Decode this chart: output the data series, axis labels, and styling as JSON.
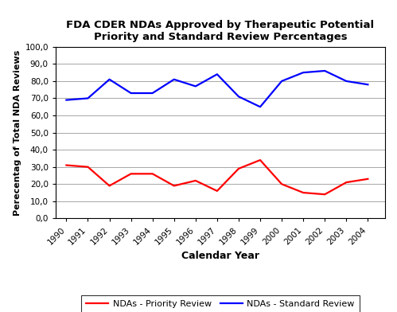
{
  "title_line1": "FDA CDER NDAs Approved by Therapeutic Potential",
  "title_line2": "Priority and Standard Review Percentages",
  "xlabel": "Calendar Year",
  "ylabel": "Perecentag of Total NDA Reviews",
  "years": [
    1990,
    1991,
    1992,
    1993,
    1994,
    1995,
    1996,
    1997,
    1998,
    1999,
    2000,
    2001,
    2002,
    2003,
    2004
  ],
  "priority": [
    31.0,
    30.0,
    19.0,
    26.0,
    26.0,
    19.0,
    22.0,
    16.0,
    29.0,
    34.0,
    20.0,
    15.0,
    14.0,
    21.0,
    23.0
  ],
  "standard": [
    69.0,
    70.0,
    81.0,
    73.0,
    73.0,
    81.0,
    77.0,
    84.0,
    71.0,
    65.0,
    80.0,
    85.0,
    86.0,
    80.0,
    78.0
  ],
  "priority_color": "#FF0000",
  "standard_color": "#0000FF",
  "priority_label": "NDAs - Priority Review",
  "standard_label": "NDAs - Standard Review",
  "ylim": [
    0,
    100
  ],
  "yticks": [
    0.0,
    10.0,
    20.0,
    30.0,
    40.0,
    50.0,
    60.0,
    70.0,
    80.0,
    90.0,
    100.0
  ],
  "bg_color": "#FFFFFF",
  "plot_bg_color": "#FFFFFF",
  "grid_color": "#999999",
  "title_fontsize": 9.5,
  "axis_label_fontsize": 9,
  "tick_fontsize": 7.5,
  "legend_fontsize": 8,
  "linewidth": 1.6
}
